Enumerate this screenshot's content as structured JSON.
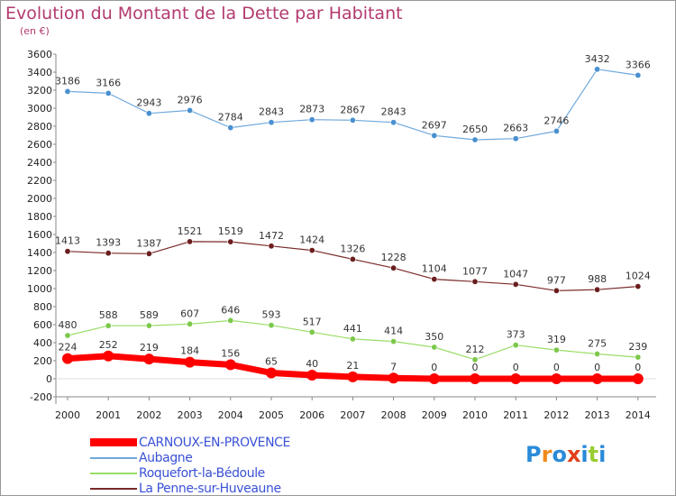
{
  "title": "Evolution du Montant de la Dette par Habitant",
  "subtitle": "(en €)",
  "logo_text": "Proxiti",
  "chart_data": {
    "type": "line",
    "title": "Evolution du Montant de la Dette par Habitant",
    "ylabel": "(en €)",
    "xlabel": "",
    "ylim": [
      -200,
      3600
    ],
    "ytick_step": 200,
    "grid": false,
    "legend_position": "bottom-left",
    "categories": [
      "2000",
      "2001",
      "2002",
      "2003",
      "2004",
      "2005",
      "2006",
      "2007",
      "2008",
      "2009",
      "2010",
      "2011",
      "2012",
      "2013",
      "2014"
    ],
    "series": [
      {
        "name": "Aubagne",
        "color": "#6fa8dc",
        "marker_fill": "#4a90d0",
        "line_width": 1.2,
        "values": [
          3186,
          3166,
          2943,
          2976,
          2784,
          2843,
          2873,
          2867,
          2843,
          2697,
          2650,
          2663,
          2746,
          3432,
          3366
        ]
      },
      {
        "name": "La Penne-sur-Huveaune",
        "color": "#7a2a2a",
        "marker_fill": "#6b1e1e",
        "line_width": 1.2,
        "values": [
          1413,
          1393,
          1387,
          1521,
          1519,
          1472,
          1424,
          1326,
          1228,
          1104,
          1077,
          1047,
          977,
          988,
          1024
        ]
      },
      {
        "name": "Roquefort-la-Bédoule",
        "color": "#99dd66",
        "marker_fill": "#7cc84a",
        "line_width": 1.2,
        "values": [
          480,
          588,
          589,
          607,
          646,
          593,
          517,
          441,
          414,
          350,
          212,
          373,
          319,
          275,
          239
        ]
      },
      {
        "name": "CARNOUX-EN-PROVENCE",
        "color": "#ff0000",
        "marker_fill": "#ff0000",
        "line_width": 7,
        "values": [
          224,
          252,
          219,
          184,
          156,
          65,
          40,
          21,
          7,
          0,
          0,
          0,
          0,
          0,
          0
        ]
      }
    ],
    "legend_order": [
      "CARNOUX-EN-PROVENCE",
      "Aubagne",
      "Roquefort-la-Bédoule",
      "La Penne-sur-Huveaune"
    ]
  }
}
